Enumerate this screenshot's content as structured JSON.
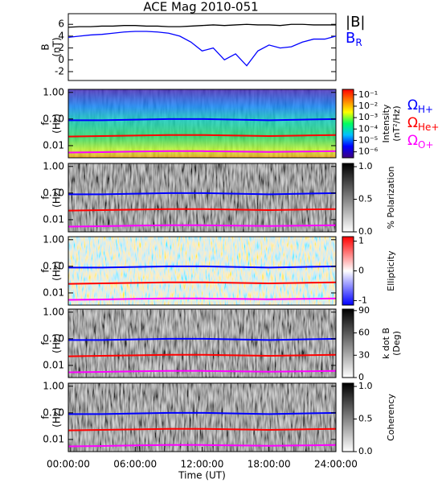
{
  "chart_data": [
    {
      "type": "line",
      "title": "ACE Mag 2010-051",
      "ylabel": [
        "B",
        "(nT)"
      ],
      "x": [
        0,
        1,
        2,
        3,
        4,
        5,
        6,
        7,
        8,
        9,
        10,
        11,
        12,
        13,
        14,
        15,
        16,
        17,
        18,
        19,
        20,
        21,
        22,
        23,
        24
      ],
      "xlim": [
        0,
        24
      ],
      "ylim": [
        -3.5,
        7.8
      ],
      "yticks": [
        -2,
        0,
        2,
        4,
        6
      ],
      "series": [
        {
          "name": "|B|",
          "color": "#000000",
          "values": [
            5.5,
            5.6,
            5.6,
            5.7,
            5.7,
            5.8,
            5.8,
            5.7,
            5.7,
            5.6,
            5.6,
            5.7,
            5.8,
            5.9,
            5.8,
            5.9,
            6.0,
            5.9,
            5.9,
            5.8,
            6.0,
            6.0,
            5.9,
            5.9,
            5.9
          ]
        },
        {
          "name": "BR",
          "color": "#0000ff",
          "values": [
            3.8,
            4.0,
            4.2,
            4.3,
            4.5,
            4.7,
            4.8,
            4.8,
            4.7,
            4.5,
            4.0,
            3.0,
            1.5,
            2.0,
            0.0,
            1.0,
            -1.0,
            1.5,
            2.5,
            2.0,
            2.2,
            3.0,
            3.5,
            3.5,
            4.0
          ]
        }
      ]
    },
    {
      "type": "spectrogram",
      "ylabel": [
        "f",
        "(Hz)"
      ],
      "log_y": true,
      "xlim": [
        0,
        24
      ],
      "ylim": [
        0.0035,
        1.3
      ],
      "yticks": [
        {
          "value": 1,
          "label": "1.00"
        },
        {
          "value": 0.1,
          "label": "0.10"
        },
        {
          "value": 0.01,
          "label": "0.01"
        }
      ],
      "x": [
        0,
        3,
        6,
        9,
        12,
        15,
        18,
        21,
        24
      ],
      "series": [
        {
          "name": "ΩH+",
          "color": "#0000ff",
          "values": [
            0.09,
            0.09,
            0.095,
            0.1,
            0.1,
            0.095,
            0.09,
            0.095,
            0.1
          ]
        },
        {
          "name": "ΩHe+",
          "color": "#ff0000",
          "values": [
            0.022,
            0.023,
            0.024,
            0.025,
            0.025,
            0.024,
            0.023,
            0.024,
            0.025
          ]
        },
        {
          "name": "ΩO+",
          "color": "#ff00ff",
          "values": [
            0.0055,
            0.0057,
            0.006,
            0.0062,
            0.0062,
            0.006,
            0.0058,
            0.006,
            0.0062
          ]
        }
      ],
      "colorbar": {
        "label": [
          "Intensity",
          "(nT²/Hz)"
        ],
        "log": true,
        "lim": [
          3e-07,
          0.3
        ],
        "ticks": [
          {
            "value": 0.1,
            "label": "10⁻¹"
          },
          {
            "value": 0.01,
            "label": "10⁻²"
          },
          {
            "value": 0.001,
            "label": "10⁻³"
          },
          {
            "value": 0.0001,
            "label": "10⁻⁴"
          },
          {
            "value": 1e-05,
            "label": "10⁻⁵"
          },
          {
            "value": 1e-06,
            "label": "10⁻⁶"
          }
        ],
        "colors": [
          "#400080",
          "#0000ff",
          "#00c0ff",
          "#00ff60",
          "#ffff00",
          "#ff8000",
          "#ff0000"
        ]
      }
    },
    {
      "type": "spectrogram",
      "ylabel": [
        "f",
        "(Hz)"
      ],
      "log_y": true,
      "xlim": [
        0,
        24
      ],
      "ylim": [
        0.0035,
        1.3
      ],
      "yticks": [
        {
          "value": 1,
          "label": "1.00"
        },
        {
          "value": 0.1,
          "label": "0.10"
        },
        {
          "value": 0.01,
          "label": "0.01"
        }
      ],
      "colorbar": {
        "label": [
          "% Polarization"
        ],
        "lim": [
          0,
          1.05
        ],
        "ticks": [
          {
            "value": 0,
            "label": "0.0"
          },
          {
            "value": 0.5,
            "label": "0.5"
          },
          {
            "value": 1,
            "label": "1.0"
          }
        ],
        "colors": [
          "#ffffff",
          "#000000"
        ]
      }
    },
    {
      "type": "spectrogram",
      "ylabel": [
        "f",
        "(Hz)"
      ],
      "log_y": true,
      "xlim": [
        0,
        24
      ],
      "ylim": [
        0.0035,
        1.3
      ],
      "yticks": [
        {
          "value": 1,
          "label": "1.00"
        },
        {
          "value": 0.1,
          "label": "0.10"
        },
        {
          "value": 0.01,
          "label": "0.01"
        }
      ],
      "colorbar": {
        "label": [
          "Ellipticity"
        ],
        "lim": [
          -1.15,
          1.15
        ],
        "ticks": [
          -1,
          0,
          1
        ],
        "colors": [
          "#0000ff",
          "#ffffff",
          "#ff0000"
        ]
      }
    },
    {
      "type": "spectrogram",
      "ylabel": [
        "f",
        "(Hz)"
      ],
      "log_y": true,
      "xlim": [
        0,
        24
      ],
      "ylim": [
        0.0035,
        1.3
      ],
      "yticks": [
        {
          "value": 1,
          "label": "1.00"
        },
        {
          "value": 0.1,
          "label": "0.10"
        },
        {
          "value": 0.01,
          "label": "0.01"
        }
      ],
      "colorbar": {
        "label": [
          "k dot B",
          "(Deg)"
        ],
        "lim": [
          0,
          92
        ],
        "ticks": [
          0,
          30,
          60,
          90
        ],
        "colors": [
          "#ffffff",
          "#000000"
        ]
      }
    },
    {
      "type": "spectrogram",
      "ylabel": [
        "f",
        "(Hz)"
      ],
      "log_y": true,
      "xlim": [
        0,
        24
      ],
      "ylim": [
        0.0035,
        1.3
      ],
      "yticks": [
        {
          "value": 1,
          "label": "1.00"
        },
        {
          "value": 0.1,
          "label": "0.10"
        },
        {
          "value": 0.01,
          "label": "0.01"
        }
      ],
      "colorbar": {
        "label": [
          "Coherency"
        ],
        "lim": [
          0,
          1.05
        ],
        "ticks": [
          {
            "value": 0,
            "label": "0.0"
          },
          {
            "value": 0.5,
            "label": "0.5"
          },
          {
            "value": 1,
            "label": "1.0"
          }
        ],
        "colors": [
          "#ffffff",
          "#000000"
        ]
      },
      "xlabel": "Time (UT)",
      "xticks": [
        {
          "value": 0,
          "label": "00:00:00"
        },
        {
          "value": 6,
          "label": "06:00:00"
        },
        {
          "value": 12,
          "label": "12:00:00"
        },
        {
          "value": 18,
          "label": "18:00:00"
        },
        {
          "value": 24,
          "label": "24:00:00"
        }
      ]
    }
  ]
}
